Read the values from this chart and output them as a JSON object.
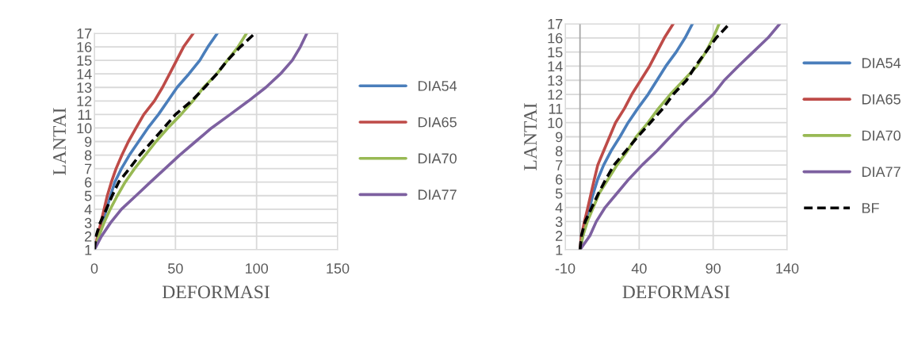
{
  "chart_data": [
    {
      "type": "line",
      "xlabel": "DEFORMASI",
      "ylabel": "LANTAI",
      "orientation": "horizontal",
      "x": [
        1,
        2,
        3,
        4,
        5,
        6,
        7,
        8,
        9,
        10,
        11,
        12,
        13,
        14,
        15,
        16,
        17
      ],
      "series": [
        {
          "name": "DIA54",
          "color": "#4a7ebb",
          "values": [
            0,
            3,
            5,
            7.5,
            10,
            12.6,
            16.7,
            21.6,
            27.3,
            33,
            39.5,
            45.3,
            51,
            58.3,
            65,
            70,
            75.8
          ]
        },
        {
          "name": "DIA65",
          "color": "#be4b48",
          "values": [
            0,
            2,
            4,
            6,
            8,
            10.5,
            13.4,
            17,
            21,
            25.7,
            30.5,
            37,
            42,
            46.4,
            50.7,
            55,
            61
          ]
        },
        {
          "name": "DIA70",
          "color": "#98b954",
          "values": [
            0,
            2.8,
            6,
            9.8,
            14.2,
            19,
            24.8,
            31.4,
            38,
            45.3,
            53.4,
            60.8,
            67.3,
            75.5,
            82,
            88.6,
            93.8
          ]
        },
        {
          "name": "DIA77",
          "color": "#7d60a0",
          "values": [
            0,
            4.4,
            10,
            16.7,
            25.7,
            34.6,
            43.6,
            52.6,
            62.4,
            72.2,
            83.7,
            95,
            105.7,
            114.7,
            122,
            127,
            131
          ]
        },
        {
          "color": "#000000",
          "line_style": "dashed",
          "values": [
            0,
            1,
            3.6,
            7.4,
            11,
            15,
            21.6,
            28,
            35.5,
            42.8,
            50,
            60,
            68,
            75.5,
            82,
            90,
            99
          ]
        }
      ],
      "xlim": [
        0,
        150
      ],
      "xticks": [
        0,
        50,
        100,
        150
      ],
      "ylim": [
        1,
        17
      ],
      "yticks": [
        1,
        2,
        3,
        4,
        5,
        6,
        7,
        8,
        9,
        10,
        11,
        12,
        13,
        14,
        15,
        16,
        17
      ],
      "grid": true,
      "legend": "right",
      "line_style": "solid",
      "marker": "none"
    },
    {
      "type": "line",
      "xlabel": "DEFORMASI",
      "ylabel": "LANTAI",
      "orientation": "horizontal",
      "x": [
        1,
        2,
        3,
        4,
        5,
        6,
        7,
        8,
        9,
        10,
        11,
        12,
        13,
        14,
        15,
        16,
        17
      ],
      "series": [
        {
          "name": "DIA54",
          "color": "#4a7ebb",
          "values": [
            0,
            2,
            4,
            6.5,
            9,
            12,
            16,
            21,
            27,
            32.5,
            39,
            46,
            52,
            58,
            65,
            71,
            76
          ]
        },
        {
          "name": "DIA65",
          "color": "#be4b48",
          "values": [
            0,
            1,
            3,
            5.3,
            7.5,
            9.7,
            12,
            16,
            20,
            24,
            30,
            35,
            41,
            47,
            52,
            57,
            63
          ]
        },
        {
          "name": "DIA70",
          "color": "#98b954",
          "values": [
            0,
            2,
            5,
            9,
            13,
            19,
            25,
            32,
            38,
            46,
            53,
            61,
            70,
            79,
            85,
            90,
            94
          ]
        },
        {
          "name": "DIA77",
          "color": "#7d60a0",
          "values": [
            0,
            6.7,
            11,
            17,
            25,
            33,
            42,
            52,
            61,
            70,
            80,
            90,
            97.5,
            107,
            117,
            127,
            135
          ]
        },
        {
          "name": "BF",
          "color": "#000000",
          "line_style": "dashed",
          "values": [
            0,
            1,
            3.5,
            8,
            12.5,
            17.5,
            23,
            31,
            39,
            47.5,
            56,
            63,
            72,
            78,
            85,
            92,
            101
          ]
        }
      ],
      "xlim": [
        -10,
        140
      ],
      "xticks": [
        -10,
        40,
        90,
        140
      ],
      "ylim": [
        1,
        17
      ],
      "yticks": [
        1,
        2,
        3,
        4,
        5,
        6,
        7,
        8,
        9,
        10,
        11,
        12,
        13,
        14,
        15,
        16,
        17
      ],
      "grid": true,
      "legend": "right",
      "line_style": "solid",
      "marker": "none"
    }
  ]
}
